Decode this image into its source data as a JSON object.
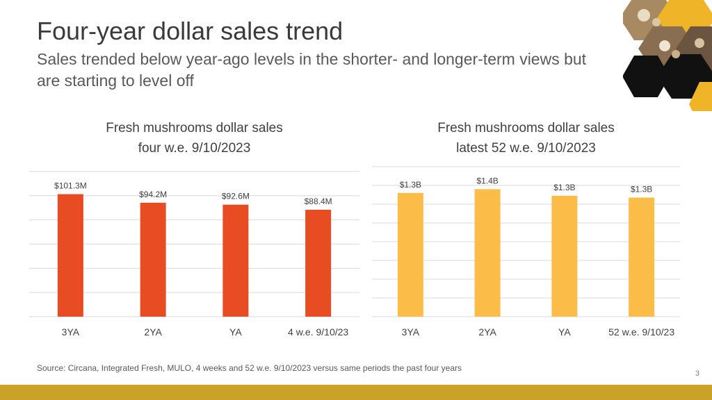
{
  "slide": {
    "title": "Four-year dollar sales trend",
    "subtitle": "Sales trended below year-ago levels in the shorter- and longer-term views but are starting to level off",
    "source": "Source: Circana, Integrated Fresh, MULO, 4 weeks and 52 w.e. 9/10/2023 versus same periods the past four years",
    "page_number": "3"
  },
  "colors": {
    "bar_left": "#e84c22",
    "bar_right": "#fbbd48",
    "grid": "#d9d9d9",
    "accent_bar": "#c9a227",
    "hex_dark": "#111111",
    "hex_gold": "#f0b429"
  },
  "chart_data": [
    {
      "type": "bar",
      "title_line1": "Fresh mushrooms dollar sales",
      "title_line2": "four w.e. 9/10/2023",
      "categories": [
        "3YA",
        "2YA",
        "YA",
        "4 w.e. 9/10/23"
      ],
      "values": [
        101.3,
        94.2,
        92.6,
        88.4
      ],
      "data_labels": [
        "$101.3M",
        "$94.2M",
        "$92.6M",
        "$88.4M"
      ],
      "unit": "$M",
      "ylim": [
        0,
        120
      ],
      "grid": true
    },
    {
      "type": "bar",
      "title_line1": "Fresh mushrooms dollar sales",
      "title_line2": "latest 52 w.e. 9/10/2023",
      "categories": [
        "3YA",
        "2YA",
        "YA",
        "52 w.e. 9/10/23"
      ],
      "values": [
        1.32,
        1.36,
        1.29,
        1.27
      ],
      "data_labels": [
        "$1.3B",
        "$1.4B",
        "$1.3B",
        "$1.3B"
      ],
      "unit": "$B",
      "ylim": [
        0,
        1.6
      ],
      "grid": true
    }
  ]
}
